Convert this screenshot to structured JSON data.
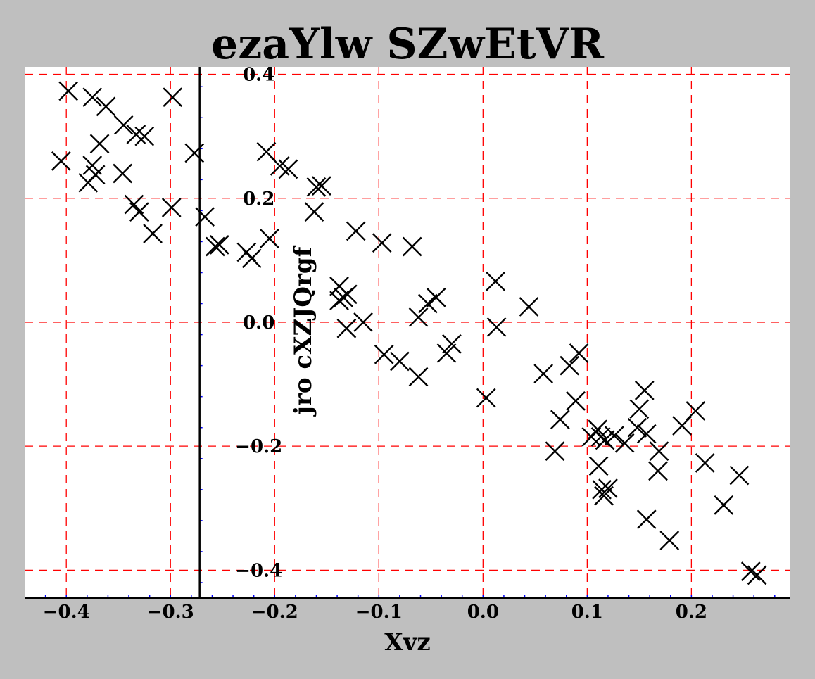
{
  "chart_data": {
    "type": "scatter",
    "title": "ezaYlw SZwEtVR",
    "xlabel": "Xvz",
    "ylabel": "jro cXZJQrgf",
    "xlim": [
      -0.44,
      0.295
    ],
    "ylim": [
      -0.445,
      0.412
    ],
    "x_ticks": [
      -0.4,
      -0.3,
      -0.2,
      -0.1,
      0.0,
      0.1,
      0.2
    ],
    "x_tick_labels": [
      "−0.4",
      "−0.3",
      "−0.2",
      "−0.1",
      "0.0",
      "0.1",
      "0.2"
    ],
    "y_ticks": [
      -0.4,
      -0.2,
      0.0,
      0.2,
      0.4
    ],
    "y_tick_labels": [
      "−0.4",
      "−0.2",
      "0.0",
      "0.2",
      "0.4"
    ],
    "y_axis_at_x": -0.272,
    "grid": true,
    "marker": "x",
    "colors": {
      "background": "#bfbfbf",
      "plot_area": "#ffffff",
      "grid": "#ff0000",
      "minor_ticks": "#0000ff",
      "markers": "#000000"
    },
    "series": [
      {
        "x": [
          -0.398,
          -0.375,
          -0.362,
          -0.345,
          -0.333,
          -0.325,
          -0.368,
          -0.405,
          -0.375,
          -0.372,
          -0.379,
          -0.346,
          -0.335,
          -0.33,
          -0.317,
          -0.299,
          -0.298,
          -0.277,
          -0.267,
          -0.257,
          -0.253,
          -0.227,
          -0.222,
          -0.208,
          -0.205,
          -0.195,
          -0.187,
          -0.16,
          -0.155,
          -0.162,
          -0.122,
          -0.138,
          -0.134,
          -0.138,
          -0.13,
          -0.131,
          -0.115,
          -0.097,
          -0.095,
          -0.08,
          -0.068,
          -0.062,
          -0.062,
          -0.053,
          -0.045,
          -0.035,
          -0.03,
          0.003,
          0.012,
          0.013,
          0.044,
          0.058,
          0.069,
          0.074,
          0.083,
          0.089,
          0.092,
          0.104,
          0.11,
          0.113,
          0.111,
          0.117,
          0.114,
          0.116,
          0.12,
          0.126,
          0.136,
          0.148,
          0.15,
          0.155,
          0.157,
          0.157,
          0.169,
          0.168,
          0.179,
          0.191,
          0.204,
          0.213,
          0.231,
          0.246,
          0.257,
          0.263
        ],
        "y": [
          0.373,
          0.363,
          0.348,
          0.318,
          0.303,
          0.3,
          0.288,
          0.26,
          0.253,
          0.238,
          0.225,
          0.24,
          0.19,
          0.178,
          0.143,
          0.185,
          0.363,
          0.273,
          0.17,
          0.122,
          0.125,
          0.113,
          0.103,
          0.275,
          0.135,
          0.252,
          0.247,
          0.218,
          0.22,
          0.178,
          0.147,
          0.058,
          0.04,
          0.035,
          0.045,
          -0.01,
          0.0,
          0.128,
          -0.052,
          -0.063,
          0.122,
          0.008,
          -0.088,
          0.03,
          0.04,
          -0.05,
          -0.035,
          -0.122,
          0.066,
          -0.008,
          0.025,
          -0.083,
          -0.208,
          -0.157,
          -0.07,
          -0.127,
          -0.05,
          -0.185,
          -0.173,
          -0.185,
          -0.232,
          -0.19,
          -0.27,
          -0.28,
          -0.268,
          -0.183,
          -0.195,
          -0.17,
          -0.14,
          -0.11,
          -0.18,
          -0.318,
          -0.208,
          -0.24,
          -0.352,
          -0.167,
          -0.143,
          -0.227,
          -0.295,
          -0.247,
          -0.402,
          -0.408
        ]
      }
    ]
  }
}
